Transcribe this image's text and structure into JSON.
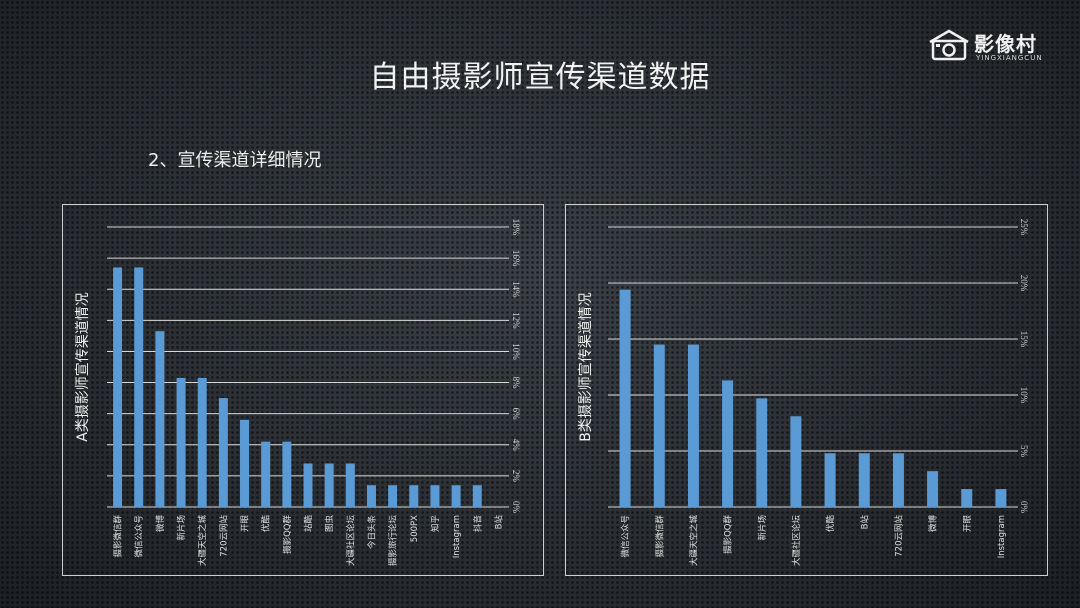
{
  "slide": {
    "title": "自由摄影师宣传渠道数据",
    "subtitle": "2、宣传渠道详细情况",
    "logo_text": "影像村",
    "logo_sub": "YINGXIANGCUN",
    "logo_icon": "camera-house-icon"
  },
  "colors": {
    "bar": "#5b9bd5",
    "grid": "#d9d9d9",
    "background": "#2a2e33"
  },
  "chart_data": [
    {
      "type": "bar",
      "ylabel": "A类摄影师宣传渠道情况",
      "ylim": [
        0,
        18
      ],
      "yticks": [
        0,
        2,
        4,
        6,
        8,
        10,
        12,
        14,
        16,
        18
      ],
      "ytick_labels": [
        "0%",
        "2%",
        "4%",
        "6%",
        "8%",
        "10%",
        "12%",
        "14%",
        "16%",
        "18%"
      ],
      "categories": [
        "摄影微信群",
        "微信公众号",
        "微博",
        "新片场",
        "大疆天空之城",
        "720云网站",
        "开眼",
        "优酷",
        "摄影QQ群",
        "站酷",
        "图虫",
        "大疆社区论坛",
        "今日头条",
        "摄影旅行论坛",
        "500PX",
        "知乎",
        "Instagram",
        "抖音",
        "B站"
      ],
      "values": [
        15.4,
        15.4,
        11.3,
        8.3,
        8.3,
        7.0,
        5.6,
        4.2,
        4.2,
        2.8,
        2.8,
        2.8,
        1.4,
        1.4,
        1.4,
        1.4,
        1.4,
        1.4,
        0
      ],
      "axis_position": "right",
      "grid": true
    },
    {
      "type": "bar",
      "ylabel": "B类摄影师宣传渠道情况",
      "ylim": [
        0,
        25
      ],
      "yticks": [
        0,
        5,
        10,
        15,
        20,
        25
      ],
      "ytick_labels": [
        "0%",
        "5%",
        "10%",
        "15%",
        "20%",
        "25%"
      ],
      "categories": [
        "微信公众号",
        "摄影微信群",
        "大疆天空之城",
        "摄影QQ群",
        "新片场",
        "大疆社区论坛",
        "优酷",
        "B站",
        "720云网站",
        "微博",
        "开眼",
        "Instagram"
      ],
      "values": [
        19.4,
        14.5,
        14.5,
        11.3,
        9.7,
        8.1,
        4.8,
        4.8,
        4.8,
        3.2,
        1.6,
        1.6
      ],
      "axis_position": "right",
      "grid": true
    }
  ]
}
